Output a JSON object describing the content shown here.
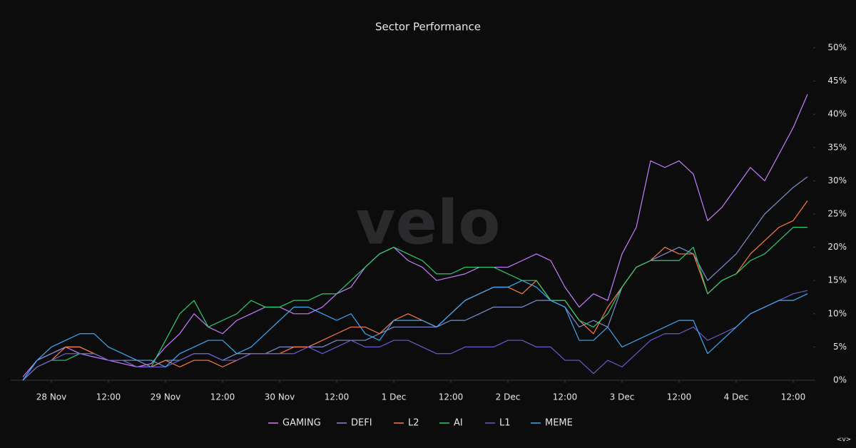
{
  "chart_data": {
    "type": "line",
    "title": "Sector Performance",
    "watermark": "velo",
    "corner_label": "<v>",
    "categories": [
      null,
      null,
      "28 Nov",
      null,
      null,
      null,
      "12:00",
      null,
      null,
      null,
      "29 Nov",
      null,
      null,
      null,
      "12:00",
      null,
      null,
      null,
      "30 Nov",
      null,
      null,
      null,
      "12:00",
      null,
      null,
      null,
      "1 Dec",
      null,
      null,
      null,
      "12:00",
      null,
      null,
      null,
      "2 Dec",
      null,
      null,
      null,
      "12:00",
      null,
      null,
      null,
      "3 Dec",
      null,
      null,
      null,
      "12:00",
      null,
      null,
      null,
      "4 Dec",
      null,
      null,
      null,
      "12:00",
      null
    ],
    "ylim": [
      0,
      50
    ],
    "yticks": [
      {
        "value": 0,
        "label": "0%"
      },
      {
        "value": 5,
        "label": "5%"
      },
      {
        "value": 10,
        "label": "10%"
      },
      {
        "value": 15,
        "label": "15%"
      },
      {
        "value": 20,
        "label": "20%"
      },
      {
        "value": 25,
        "label": "25%"
      },
      {
        "value": 30,
        "label": "30%"
      },
      {
        "value": 35,
        "label": "35%"
      },
      {
        "value": 40,
        "label": "40%"
      },
      {
        "value": 45,
        "label": "45%"
      },
      {
        "value": 50,
        "label": "50%"
      }
    ],
    "grid": false,
    "legend": "bottom",
    "series": [
      {
        "name": "GAMING",
        "color": "#c77dff",
        "values": [
          0.5,
          3,
          4,
          5,
          4,
          3.5,
          3,
          2.5,
          2,
          2.5,
          5,
          7,
          10,
          8,
          7,
          9,
          10,
          11,
          11,
          10,
          10,
          11,
          13,
          14,
          17,
          19,
          20,
          18,
          17,
          15,
          15.5,
          16,
          17,
          17,
          17,
          18,
          19,
          18,
          14,
          11,
          13,
          12,
          19,
          23,
          33,
          32,
          33,
          31,
          24,
          26,
          29,
          32,
          30,
          34,
          38,
          43
        ]
      },
      {
        "name": "DEFI",
        "color": "#7f8fcf",
        "values": [
          0,
          3,
          4,
          5,
          5,
          4,
          3,
          3,
          3,
          2,
          3,
          3,
          4,
          4,
          3,
          4,
          4,
          4,
          5,
          5,
          5,
          5,
          6,
          6,
          6,
          7,
          8,
          8,
          8,
          8,
          9,
          9,
          10,
          11,
          11,
          11,
          12,
          12,
          11,
          8,
          9,
          8,
          14,
          17,
          18,
          19,
          20,
          19,
          15,
          17,
          19,
          22,
          25,
          27,
          29,
          30.6
        ]
      },
      {
        "name": "L2",
        "color": "#ff7a45",
        "values": [
          0,
          2,
          3,
          5,
          5,
          4,
          3,
          3,
          2,
          2,
          3,
          2,
          3,
          3,
          2,
          3,
          4,
          4,
          4,
          5,
          5,
          6,
          7,
          8,
          8,
          7,
          9,
          10,
          9,
          8,
          10,
          12,
          13,
          14,
          14,
          13,
          15,
          12,
          12,
          9,
          7,
          11,
          14,
          17,
          18,
          20,
          19,
          19,
          13,
          15,
          16,
          19,
          21,
          23,
          24,
          27
        ]
      },
      {
        "name": "AI",
        "color": "#2ecc71",
        "values": [
          0,
          2,
          3,
          3,
          4,
          4,
          3,
          3,
          2,
          2,
          6,
          10,
          12,
          8,
          9,
          10,
          12,
          11,
          11,
          12,
          12,
          13,
          13,
          15,
          17,
          19,
          20,
          19,
          18,
          16,
          16,
          17,
          17,
          17,
          16,
          15,
          15,
          12,
          12,
          9,
          8,
          10,
          14,
          17,
          18,
          18,
          18,
          20,
          13,
          15,
          16,
          18,
          19,
          21,
          23,
          23
        ]
      },
      {
        "name": "L1",
        "color": "#6a5acd",
        "values": [
          0,
          2,
          3,
          4,
          4,
          4,
          3,
          3,
          2,
          2,
          2,
          3,
          4,
          4,
          3,
          3,
          4,
          4,
          4,
          4,
          5,
          4,
          5,
          6,
          5,
          5,
          6,
          6,
          5,
          4,
          4,
          5,
          5,
          5,
          6,
          6,
          5,
          5,
          3,
          3,
          1,
          3,
          2,
          4,
          6,
          7,
          7,
          8,
          6,
          7,
          8,
          10,
          11,
          12,
          13,
          13.5
        ]
      },
      {
        "name": "MEME",
        "color": "#3fa9f5",
        "values": [
          0,
          3,
          5,
          6,
          7,
          7,
          5,
          4,
          3,
          3,
          2,
          4,
          5,
          6,
          6,
          4,
          5,
          7,
          9,
          11,
          11,
          10,
          9,
          10,
          7,
          6,
          9,
          9,
          9,
          8,
          10,
          12,
          13,
          14,
          14,
          15,
          14,
          12,
          11,
          6,
          6,
          8,
          5,
          6,
          7,
          8,
          9,
          9,
          4,
          6,
          8,
          10,
          11,
          12,
          12,
          13
        ]
      }
    ]
  }
}
